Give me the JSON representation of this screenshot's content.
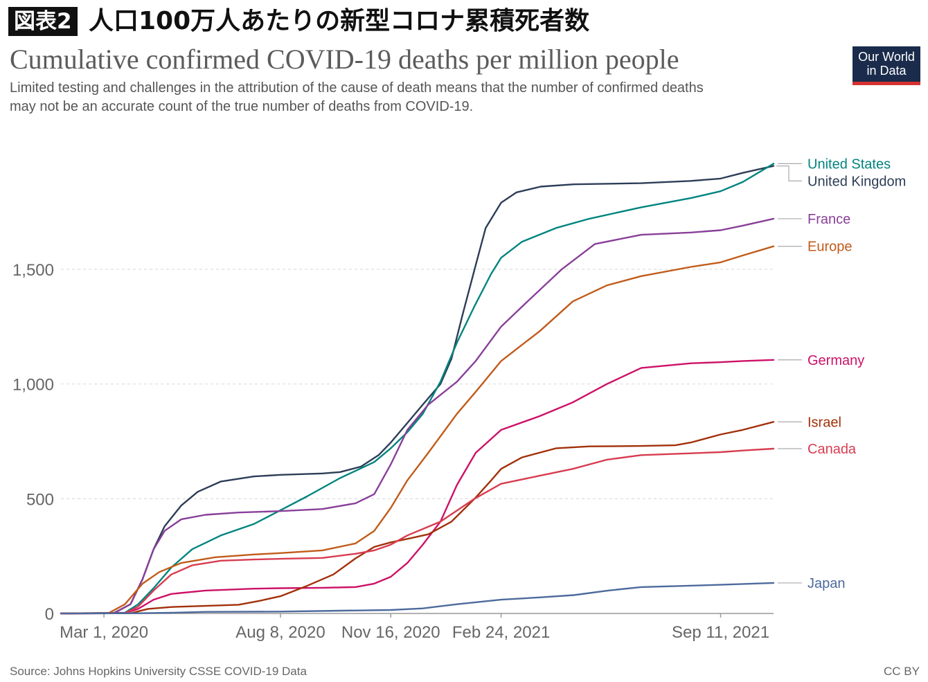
{
  "header": {
    "figure_label": "図表2",
    "japanese_title": "人口100万人あたりの新型コロナ累積死者数",
    "subtitle_line1": "Limited testing and challenges in the attribution of the cause of death means that the number of confirmed deaths",
    "subtitle_line2": "may not be an accurate count of the true number of deaths from COVID-19.",
    "logo_line1": "Our World",
    "logo_line2": "in Data"
  },
  "footer": {
    "source": "Source: Johns Hopkins University CSSE COVID-19 Data",
    "license": "CC BY"
  },
  "colors": {
    "grid": "#dddddd",
    "axis": "#999999",
    "tick_text": "#666666"
  },
  "chart_data": {
    "type": "line",
    "title": "Cumulative confirmed COVID-19 deaths per million people",
    "xlabel": "",
    "ylabel": "",
    "x_range": [
      "2020-01-22",
      "2021-10-29"
    ],
    "ylim": [
      0,
      2100
    ],
    "x_ticks": [
      {
        "date": "2020-03-01",
        "label": "Mar 1, 2020"
      },
      {
        "date": "2020-08-08",
        "label": "Aug 8, 2020"
      },
      {
        "date": "2020-11-16",
        "label": "Nov 16, 2020"
      },
      {
        "date": "2021-02-24",
        "label": "Feb 24, 2021"
      },
      {
        "date": "2021-09-11",
        "label": "Sep 11, 2021"
      }
    ],
    "y_ticks": [
      {
        "value": 0,
        "label": "0"
      },
      {
        "value": 500,
        "label": "500"
      },
      {
        "value": 1000,
        "label": "1,000"
      },
      {
        "value": 1500,
        "label": "1,500"
      }
    ],
    "grid": "horizontal dashed",
    "legend": "labels at right end of lines",
    "series": [
      {
        "name": "United Kingdom",
        "color": "#2d3d57",
        "points": [
          [
            "2020-01-22",
            0
          ],
          [
            "2020-03-10",
            2
          ],
          [
            "2020-03-25",
            40
          ],
          [
            "2020-04-05",
            150
          ],
          [
            "2020-04-15",
            280
          ],
          [
            "2020-04-25",
            380
          ],
          [
            "2020-05-10",
            470
          ],
          [
            "2020-05-25",
            530
          ],
          [
            "2020-06-15",
            575
          ],
          [
            "2020-07-15",
            597
          ],
          [
            "2020-08-08",
            604
          ],
          [
            "2020-09-15",
            610
          ],
          [
            "2020-10-01",
            616
          ],
          [
            "2020-10-20",
            640
          ],
          [
            "2020-11-05",
            690
          ],
          [
            "2020-11-16",
            745
          ],
          [
            "2020-12-01",
            830
          ],
          [
            "2020-12-15",
            910
          ],
          [
            "2020-12-31",
            1000
          ],
          [
            "2021-01-10",
            1110
          ],
          [
            "2021-01-20",
            1300
          ],
          [
            "2021-01-31",
            1500
          ],
          [
            "2021-02-10",
            1680
          ],
          [
            "2021-02-24",
            1790
          ],
          [
            "2021-03-10",
            1835
          ],
          [
            "2021-04-01",
            1860
          ],
          [
            "2021-05-01",
            1870
          ],
          [
            "2021-07-01",
            1875
          ],
          [
            "2021-08-15",
            1885
          ],
          [
            "2021-09-11",
            1895
          ],
          [
            "2021-10-01",
            1920
          ],
          [
            "2021-10-29",
            1950
          ]
        ]
      },
      {
        "name": "United States",
        "color": "#00847e",
        "points": [
          [
            "2020-01-22",
            0
          ],
          [
            "2020-03-20",
            3
          ],
          [
            "2020-04-01",
            40
          ],
          [
            "2020-04-15",
            110
          ],
          [
            "2020-05-01",
            200
          ],
          [
            "2020-05-20",
            280
          ],
          [
            "2020-06-15",
            340
          ],
          [
            "2020-07-15",
            390
          ],
          [
            "2020-08-08",
            450
          ],
          [
            "2020-09-01",
            510
          ],
          [
            "2020-10-01",
            590
          ],
          [
            "2020-11-01",
            660
          ],
          [
            "2020-11-16",
            720
          ],
          [
            "2020-12-01",
            790
          ],
          [
            "2020-12-15",
            870
          ],
          [
            "2020-12-31",
            1010
          ],
          [
            "2021-01-15",
            1180
          ],
          [
            "2021-01-31",
            1340
          ],
          [
            "2021-02-15",
            1480
          ],
          [
            "2021-02-24",
            1550
          ],
          [
            "2021-03-15",
            1620
          ],
          [
            "2021-04-15",
            1680
          ],
          [
            "2021-05-15",
            1720
          ],
          [
            "2021-07-01",
            1770
          ],
          [
            "2021-08-15",
            1810
          ],
          [
            "2021-09-11",
            1840
          ],
          [
            "2021-10-01",
            1880
          ],
          [
            "2021-10-29",
            1960
          ]
        ]
      },
      {
        "name": "France",
        "color": "#883f98",
        "points": [
          [
            "2020-01-22",
            0
          ],
          [
            "2020-03-10",
            1
          ],
          [
            "2020-03-25",
            40
          ],
          [
            "2020-04-05",
            150
          ],
          [
            "2020-04-15",
            280
          ],
          [
            "2020-04-25",
            360
          ],
          [
            "2020-05-10",
            410
          ],
          [
            "2020-06-01",
            430
          ],
          [
            "2020-07-01",
            440
          ],
          [
            "2020-08-08",
            446
          ],
          [
            "2020-09-15",
            455
          ],
          [
            "2020-10-15",
            480
          ],
          [
            "2020-11-01",
            520
          ],
          [
            "2020-11-16",
            650
          ],
          [
            "2020-12-01",
            800
          ],
          [
            "2020-12-20",
            910
          ],
          [
            "2021-01-15",
            1010
          ],
          [
            "2021-02-01",
            1100
          ],
          [
            "2021-02-24",
            1250
          ],
          [
            "2021-03-20",
            1360
          ],
          [
            "2021-04-20",
            1500
          ],
          [
            "2021-05-20",
            1610
          ],
          [
            "2021-07-01",
            1650
          ],
          [
            "2021-08-15",
            1660
          ],
          [
            "2021-09-11",
            1670
          ],
          [
            "2021-10-01",
            1690
          ],
          [
            "2021-10-29",
            1720
          ]
        ]
      },
      {
        "name": "Europe",
        "color": "#c15b1a",
        "points": [
          [
            "2020-01-22",
            0
          ],
          [
            "2020-03-05",
            1
          ],
          [
            "2020-03-20",
            40
          ],
          [
            "2020-04-05",
            130
          ],
          [
            "2020-04-20",
            180
          ],
          [
            "2020-05-10",
            220
          ],
          [
            "2020-06-10",
            245
          ],
          [
            "2020-07-15",
            257
          ],
          [
            "2020-08-08",
            263
          ],
          [
            "2020-09-15",
            275
          ],
          [
            "2020-10-15",
            305
          ],
          [
            "2020-11-01",
            360
          ],
          [
            "2020-11-16",
            460
          ],
          [
            "2020-12-01",
            580
          ],
          [
            "2020-12-20",
            700
          ],
          [
            "2021-01-15",
            870
          ],
          [
            "2021-01-31",
            960
          ],
          [
            "2021-02-24",
            1100
          ],
          [
            "2021-03-31",
            1230
          ],
          [
            "2021-04-30",
            1360
          ],
          [
            "2021-05-31",
            1430
          ],
          [
            "2021-07-01",
            1470
          ],
          [
            "2021-08-15",
            1510
          ],
          [
            "2021-09-11",
            1530
          ],
          [
            "2021-10-01",
            1560
          ],
          [
            "2021-10-29",
            1600
          ]
        ]
      },
      {
        "name": "Germany",
        "color": "#cc1167",
        "points": [
          [
            "2020-01-22",
            0
          ],
          [
            "2020-03-20",
            2
          ],
          [
            "2020-04-01",
            20
          ],
          [
            "2020-04-15",
            60
          ],
          [
            "2020-05-01",
            85
          ],
          [
            "2020-06-01",
            100
          ],
          [
            "2020-07-15",
            108
          ],
          [
            "2020-08-08",
            110
          ],
          [
            "2020-09-15",
            112
          ],
          [
            "2020-10-15",
            115
          ],
          [
            "2020-11-01",
            130
          ],
          [
            "2020-11-16",
            160
          ],
          [
            "2020-12-01",
            220
          ],
          [
            "2020-12-15",
            300
          ],
          [
            "2020-12-31",
            400
          ],
          [
            "2021-01-15",
            560
          ],
          [
            "2021-02-01",
            700
          ],
          [
            "2021-02-24",
            800
          ],
          [
            "2021-03-31",
            860
          ],
          [
            "2021-04-30",
            920
          ],
          [
            "2021-05-31",
            1000
          ],
          [
            "2021-07-01",
            1070
          ],
          [
            "2021-08-15",
            1090
          ],
          [
            "2021-09-11",
            1095
          ],
          [
            "2021-10-01",
            1100
          ],
          [
            "2021-10-29",
            1105
          ]
        ]
      },
      {
        "name": "Israel",
        "color": "#a2300a",
        "points": [
          [
            "2020-01-22",
            0
          ],
          [
            "2020-03-25",
            1
          ],
          [
            "2020-04-10",
            20
          ],
          [
            "2020-05-01",
            28
          ],
          [
            "2020-06-01",
            33
          ],
          [
            "2020-07-01",
            38
          ],
          [
            "2020-07-20",
            55
          ],
          [
            "2020-08-08",
            75
          ],
          [
            "2020-09-01",
            120
          ],
          [
            "2020-09-25",
            170
          ],
          [
            "2020-10-15",
            240
          ],
          [
            "2020-11-01",
            290
          ],
          [
            "2020-11-16",
            310
          ],
          [
            "2020-12-01",
            325
          ],
          [
            "2020-12-20",
            345
          ],
          [
            "2021-01-10",
            400
          ],
          [
            "2021-01-31",
            500
          ],
          [
            "2021-02-15",
            580
          ],
          [
            "2021-02-24",
            630
          ],
          [
            "2021-03-15",
            680
          ],
          [
            "2021-04-15",
            720
          ],
          [
            "2021-05-15",
            728
          ],
          [
            "2021-07-01",
            730
          ],
          [
            "2021-08-01",
            733
          ],
          [
            "2021-08-15",
            745
          ],
          [
            "2021-09-11",
            780
          ],
          [
            "2021-10-01",
            800
          ],
          [
            "2021-10-29",
            835
          ]
        ]
      },
      {
        "name": "Canada",
        "color": "#d73c50",
        "points": [
          [
            "2020-01-22",
            0
          ],
          [
            "2020-03-20",
            1
          ],
          [
            "2020-04-01",
            30
          ],
          [
            "2020-04-15",
            100
          ],
          [
            "2020-05-01",
            170
          ],
          [
            "2020-05-20",
            210
          ],
          [
            "2020-06-15",
            230
          ],
          [
            "2020-07-15",
            235
          ],
          [
            "2020-08-08",
            238
          ],
          [
            "2020-09-15",
            242
          ],
          [
            "2020-10-15",
            260
          ],
          [
            "2020-11-01",
            275
          ],
          [
            "2020-11-16",
            300
          ],
          [
            "2020-12-01",
            340
          ],
          [
            "2020-12-31",
            400
          ],
          [
            "2021-01-31",
            500
          ],
          [
            "2021-02-24",
            565
          ],
          [
            "2021-03-31",
            600
          ],
          [
            "2021-04-30",
            630
          ],
          [
            "2021-05-31",
            670
          ],
          [
            "2021-07-01",
            690
          ],
          [
            "2021-08-15",
            698
          ],
          [
            "2021-09-11",
            703
          ],
          [
            "2021-10-01",
            710
          ],
          [
            "2021-10-29",
            718
          ]
        ]
      },
      {
        "name": "Japan",
        "color": "#4c6a9c",
        "points": [
          [
            "2020-01-22",
            0
          ],
          [
            "2020-04-01",
            1
          ],
          [
            "2020-05-01",
            3
          ],
          [
            "2020-06-01",
            7
          ],
          [
            "2020-08-08",
            8
          ],
          [
            "2020-10-01",
            12
          ],
          [
            "2020-11-16",
            15
          ],
          [
            "2020-12-15",
            22
          ],
          [
            "2021-01-15",
            40
          ],
          [
            "2021-02-24",
            60
          ],
          [
            "2021-03-31",
            70
          ],
          [
            "2021-05-01",
            80
          ],
          [
            "2021-06-01",
            100
          ],
          [
            "2021-07-01",
            115
          ],
          [
            "2021-09-11",
            125
          ],
          [
            "2021-10-29",
            133
          ]
        ]
      }
    ]
  }
}
